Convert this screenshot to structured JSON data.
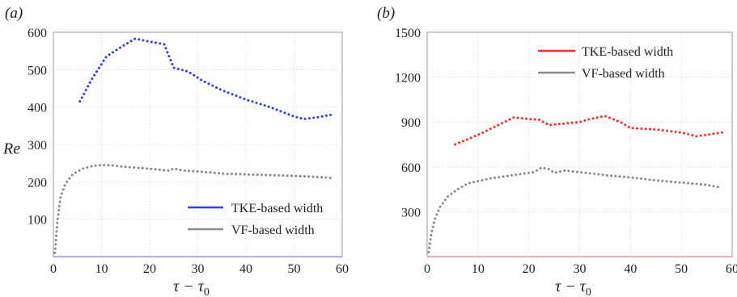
{
  "chart_data": [
    {
      "panel_label": "(a)",
      "type": "line",
      "xlabel": "τ − τ",
      "xlabel_sub": "0",
      "ylabel": "Re",
      "xlim": [
        0,
        60
      ],
      "ylim": [
        0,
        600
      ],
      "xticks": [
        0,
        10,
        20,
        30,
        40,
        50,
        60
      ],
      "yticks": [
        100,
        200,
        300,
        400,
        500,
        600
      ],
      "grid": true,
      "legend_position": "bottom-right",
      "series": [
        {
          "name": "TKE-based width",
          "color": "#2f3bff",
          "x": [
            5.5,
            8,
            11,
            14,
            17,
            20,
            23,
            25,
            28,
            31,
            35,
            40,
            45,
            50,
            52,
            55,
            58
          ],
          "y": [
            415,
            475,
            535,
            560,
            583,
            575,
            568,
            505,
            495,
            470,
            445,
            420,
            400,
            375,
            368,
            373,
            380
          ]
        },
        {
          "name": "VF-based width",
          "color": "#8a8a8a",
          "x": [
            0.3,
            0.8,
            1.5,
            2.5,
            4,
            6,
            8,
            10,
            12,
            15,
            20,
            24,
            25,
            27,
            30,
            35,
            40,
            45,
            50,
            55,
            58
          ],
          "y": [
            10,
            90,
            160,
            195,
            220,
            235,
            242,
            245,
            244,
            240,
            235,
            230,
            236,
            230,
            228,
            222,
            220,
            218,
            216,
            213,
            210
          ]
        }
      ]
    },
    {
      "panel_label": "(b)",
      "type": "line",
      "xlabel": "τ − τ",
      "xlabel_sub": "0",
      "ylabel": "",
      "xlim": [
        0,
        60
      ],
      "ylim": [
        0,
        1500
      ],
      "xticks": [
        0,
        10,
        20,
        30,
        40,
        50,
        60
      ],
      "yticks": [
        300,
        600,
        900,
        1200,
        1500
      ],
      "grid": true,
      "legend_position": "top-right",
      "series": [
        {
          "name": "TKE-based width",
          "color": "#ff2a2a",
          "x": [
            5.5,
            8,
            11,
            14,
            17,
            20,
            22,
            24,
            27,
            30,
            32,
            35,
            38,
            40,
            45,
            50,
            53,
            55,
            58
          ],
          "y": [
            750,
            785,
            830,
            880,
            930,
            920,
            915,
            880,
            890,
            900,
            920,
            940,
            900,
            860,
            850,
            830,
            805,
            815,
            830
          ]
        },
        {
          "name": "VF-based width",
          "color": "#8a8a8a",
          "x": [
            0.3,
            0.8,
            1.5,
            2.5,
            4,
            6,
            8,
            10,
            12,
            15,
            18,
            21,
            22.5,
            24,
            25,
            27,
            30,
            35,
            40,
            45,
            50,
            55,
            58
          ],
          "y": [
            30,
            150,
            250,
            330,
            400,
            450,
            490,
            505,
            520,
            535,
            550,
            565,
            595,
            585,
            560,
            575,
            565,
            545,
            530,
            510,
            495,
            480,
            460
          ]
        }
      ]
    }
  ]
}
